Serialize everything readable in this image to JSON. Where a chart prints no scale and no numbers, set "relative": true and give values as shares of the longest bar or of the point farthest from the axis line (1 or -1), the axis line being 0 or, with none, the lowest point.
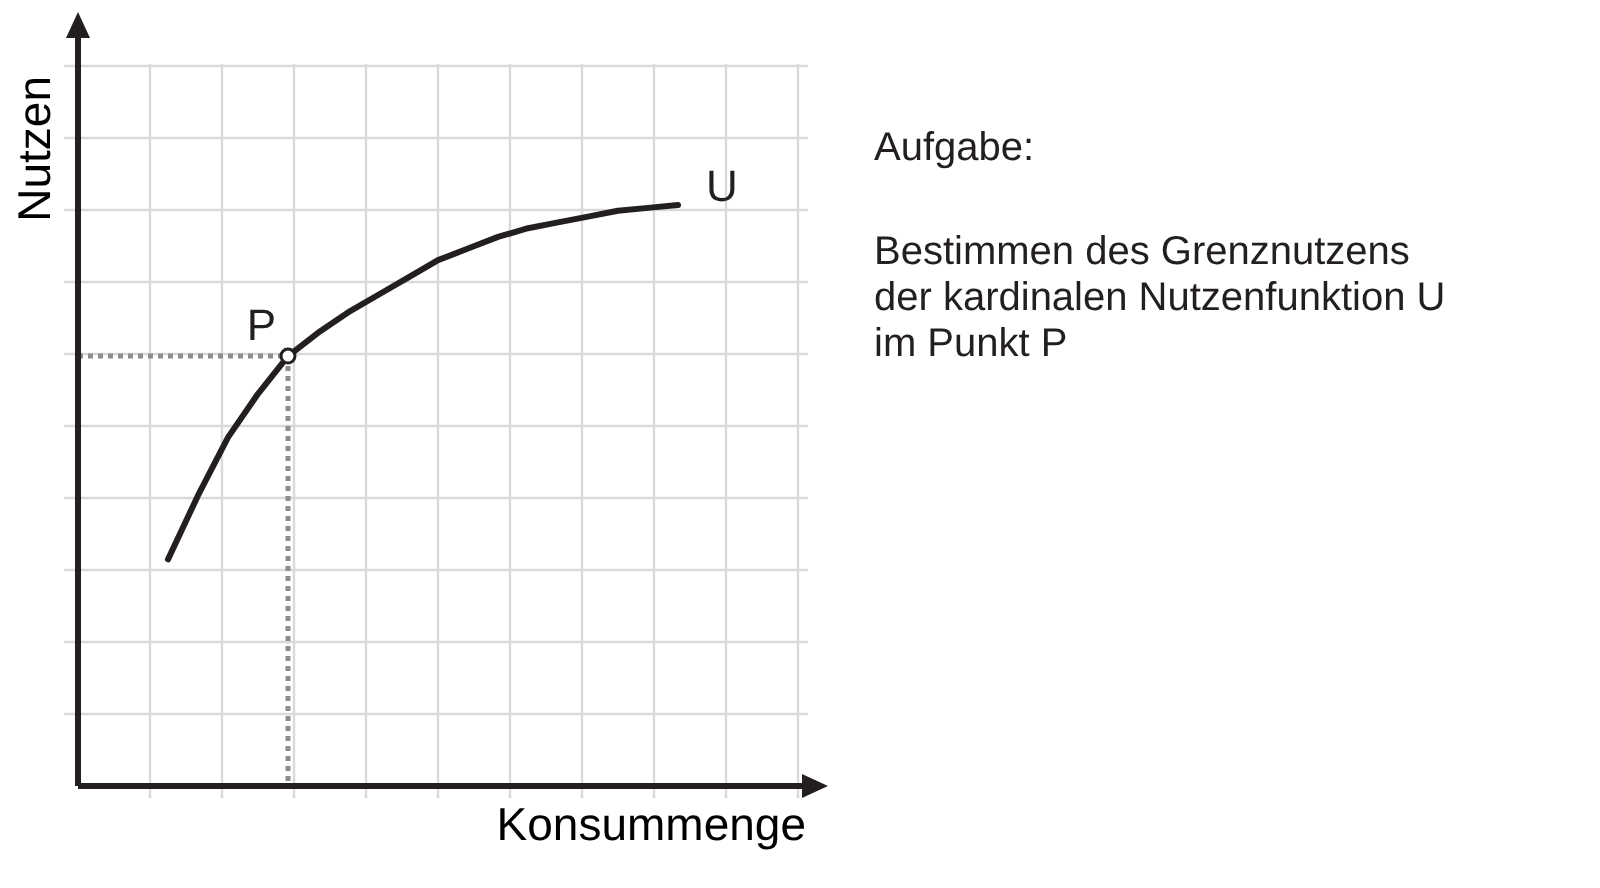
{
  "chart_data": {
    "type": "line",
    "relative": true,
    "xlabel": "Konsummenge",
    "ylabel": "Nutzen",
    "categories": [
      null,
      null,
      null,
      null,
      null,
      null,
      null,
      null,
      null,
      null,
      null,
      null,
      null,
      null,
      null,
      null,
      null,
      null,
      null,
      null,
      null,
      null,
      null,
      null,
      null
    ],
    "grid": true,
    "series": [
      {
        "name": "U",
        "color": "#231f20",
        "values": [
          null,
          null,
          null,
          0.39,
          0.5,
          0.6,
          0.675,
          0.74,
          0.78,
          0.815,
          0.845,
          0.875,
          0.905,
          0.925,
          0.945,
          0.96,
          0.97,
          0.98,
          0.99,
          0.995,
          1,
          null,
          null,
          null,
          null
        ],
        "line_style": "solid"
      }
    ],
    "ref_lines": [
      {
        "axis": "y",
        "value": 0.74,
        "label": "P",
        "color": "#8c8c8c",
        "line_style": "dotted"
      }
    ],
    "annotations": [
      "Aufgabe:",
      "Bestimmen des Grenznutzens",
      "der kardinalen Nutzenfunktion U",
      "im Punkt P"
    ]
  }
}
